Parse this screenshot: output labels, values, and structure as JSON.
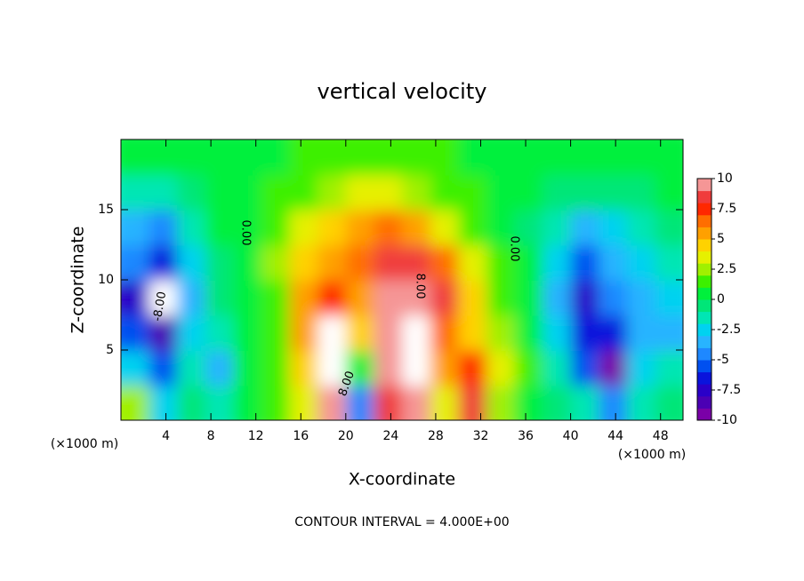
{
  "chart_data": {
    "type": "contour",
    "title": "vertical velocity",
    "x_label": "X-coordinate",
    "y_label": "Z-coordinate",
    "x_unit": "(×1000 m)",
    "annotation": "CONTOUR INTERVAL = 4.000E+00",
    "contour_labels": [
      "0.00",
      "0.00",
      "8.00",
      "8.00",
      "-8.00"
    ],
    "xlim": [
      0,
      50
    ],
    "ylim": [
      0,
      20
    ],
    "xticks": [
      4,
      8,
      12,
      16,
      20,
      24,
      28,
      32,
      36,
      40,
      44,
      48
    ],
    "yticks": [
      5,
      10,
      15
    ],
    "x": [
      1.25,
      3.75,
      6.25,
      8.75,
      11.25,
      13.75,
      16.25,
      18.75,
      21.25,
      23.75,
      26.25,
      28.75,
      31.25,
      33.75,
      36.25,
      38.75,
      41.25,
      43.75,
      46.25,
      48.75
    ],
    "z": [
      1.25,
      3.75,
      6.25,
      8.75,
      11.25,
      13.75,
      16.25,
      18.75
    ],
    "values": [
      [
        2,
        -3,
        -1,
        -2,
        0.5,
        1,
        3,
        9,
        -5,
        8,
        9,
        3,
        8,
        2,
        0.5,
        -1,
        -2,
        -5,
        -2,
        -1
      ],
      [
        -3,
        -6,
        -2,
        -4,
        0.5,
        1,
        4,
        11,
        0,
        9,
        11,
        5,
        7,
        3,
        1,
        -2,
        -6,
        -10,
        -3,
        -2
      ],
      [
        -6,
        -9,
        -3,
        -2,
        0.5,
        1,
        5,
        11,
        4,
        10,
        11,
        6,
        4,
        2,
        0.5,
        -3,
        -7,
        -7,
        -4,
        -4
      ],
      [
        -8,
        -11,
        -4,
        -1,
        0.5,
        1.5,
        5,
        7,
        5,
        9,
        9,
        8,
        4,
        1.5,
        0.5,
        -4,
        -8,
        -5,
        -4,
        -3
      ],
      [
        -5,
        -7,
        -3,
        -1,
        0.5,
        2,
        4,
        5,
        6,
        8,
        8,
        6,
        3,
        1,
        0,
        -3,
        -6,
        -4,
        -3,
        -2
      ],
      [
        -4,
        -5,
        -2,
        0,
        0.5,
        1.5,
        3,
        4,
        5,
        6,
        5,
        3,
        1.5,
        0.5,
        -0.5,
        -2,
        -4,
        -3,
        -2,
        -1
      ],
      [
        -2,
        -2,
        -1,
        0,
        0.5,
        1,
        1.5,
        2.5,
        3,
        3,
        2,
        1.5,
        1,
        0.5,
        0,
        -0.5,
        -1,
        -1,
        -0.5,
        0
      ],
      [
        0.5,
        0.5,
        0.5,
        0.5,
        0.5,
        0.5,
        1,
        1,
        1,
        1,
        1,
        1,
        0.5,
        0.5,
        0.5,
        0.5,
        0.5,
        0.5,
        0.5,
        0.5
      ]
    ],
    "clim": [
      -10,
      10
    ],
    "cticks": [
      10,
      7.5,
      5,
      2.5,
      0,
      -2.5,
      -5,
      -7.5,
      -10
    ],
    "colors": [
      "#7a00a8",
      "#4b00b4",
      "#2a00c8",
      "#0a14dc",
      "#0050f0",
      "#1e88ff",
      "#28b4ff",
      "#00d2f0",
      "#00e6b4",
      "#00e678",
      "#00f03c",
      "#3cf000",
      "#a0f000",
      "#e6f000",
      "#ffd200",
      "#ffa000",
      "#ff6e00",
      "#ff2800",
      "#f03c3c",
      "#f59696"
    ],
    "over_color": "#ffffff",
    "under_color": "#ffffff"
  }
}
